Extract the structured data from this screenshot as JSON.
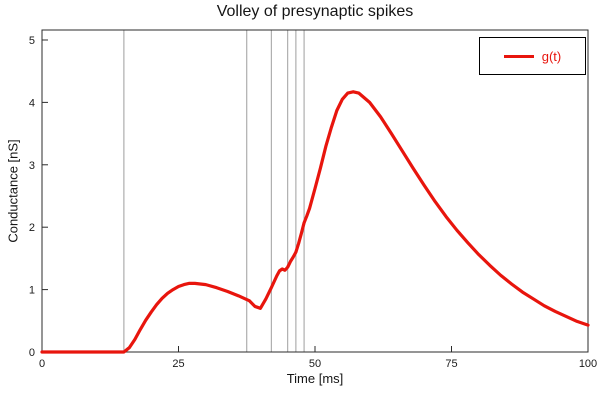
{
  "chart_data": {
    "type": "line",
    "title": "Volley of presynaptic spikes",
    "xlabel": "Time [ms]",
    "ylabel": "Conductance [nS]",
    "xlim": [
      0,
      100
    ],
    "ylim": [
      0,
      5.16
    ],
    "xticks": [
      0,
      25,
      50,
      75,
      100
    ],
    "yticks": [
      0,
      1,
      2,
      3,
      4,
      5
    ],
    "grid": false,
    "frame_color": "#2b2b2b",
    "spike_line_color": "#9e9e9e",
    "spike_times": [
      15,
      37.5,
      42,
      45,
      46.5,
      48
    ],
    "legend": {
      "position": "top-right",
      "entries": [
        {
          "label": "g(t)",
          "color": "#e8150d"
        }
      ]
    },
    "series": [
      {
        "name": "g(t)",
        "color": "#e8150d",
        "x": [
          0,
          5,
          10,
          14,
          15,
          16,
          17,
          18,
          19,
          20,
          21,
          22,
          23,
          24,
          25,
          26,
          27,
          28,
          30,
          32,
          34,
          36,
          38,
          39,
          40,
          41,
          42,
          43,
          43.5,
          44,
          44.5,
          45,
          45.5,
          46,
          46.5,
          47,
          47.5,
          48,
          48.5,
          49,
          50,
          51,
          52,
          53,
          54,
          55,
          56,
          57,
          58,
          60,
          62,
          64,
          66,
          68,
          70,
          72,
          74,
          76,
          78,
          80,
          82,
          84,
          86,
          88,
          90,
          92,
          94,
          96,
          98,
          100
        ],
        "y": [
          0,
          0,
          0,
          0,
          0,
          0.07,
          0.2,
          0.36,
          0.51,
          0.64,
          0.76,
          0.86,
          0.94,
          1.0,
          1.05,
          1.08,
          1.1,
          1.1,
          1.08,
          1.03,
          0.97,
          0.9,
          0.82,
          0.73,
          0.7,
          0.85,
          1.03,
          1.22,
          1.3,
          1.33,
          1.31,
          1.36,
          1.45,
          1.52,
          1.6,
          1.74,
          1.9,
          2.07,
          2.18,
          2.3,
          2.62,
          2.95,
          3.3,
          3.6,
          3.87,
          4.05,
          4.15,
          4.17,
          4.15,
          4.0,
          3.77,
          3.5,
          3.22,
          2.94,
          2.67,
          2.41,
          2.17,
          1.95,
          1.75,
          1.56,
          1.39,
          1.23,
          1.09,
          0.96,
          0.85,
          0.74,
          0.65,
          0.57,
          0.49,
          0.43
        ]
      }
    ]
  }
}
